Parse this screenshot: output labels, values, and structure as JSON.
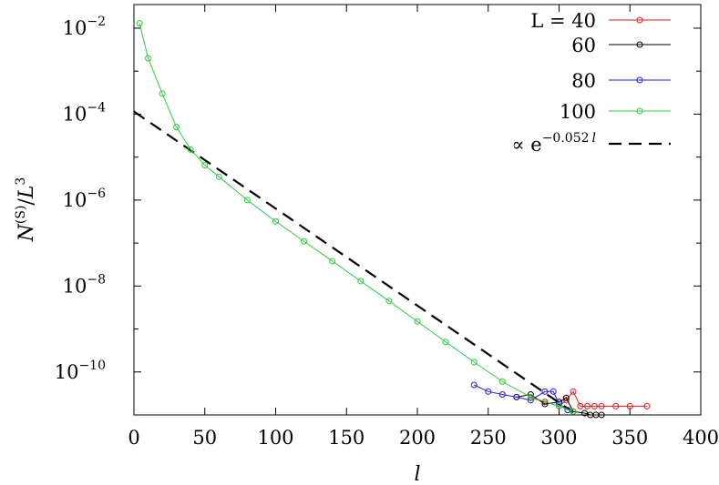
{
  "chart_data": {
    "type": "scatter",
    "xlabel": "l",
    "ylabel": "N^(S)/L^3",
    "xlim": [
      0,
      400
    ],
    "ylim_log10": [
      -11.0,
      -1.45
    ],
    "yscale": "log",
    "grid": false,
    "legend_position": "top-right",
    "x_ticks": [
      0,
      50,
      100,
      150,
      200,
      250,
      300,
      350,
      400
    ],
    "y_ticks": [
      {
        "exp": -2,
        "base": "10",
        "exponent": "−2"
      },
      {
        "exp": -4,
        "base": "10",
        "exponent": "−4"
      },
      {
        "exp": -6,
        "base": "10",
        "exponent": "−6"
      },
      {
        "exp": -8,
        "base": "10",
        "exponent": "−8"
      },
      {
        "exp": -10,
        "base": "10",
        "exponent": "−10"
      }
    ],
    "series": [
      {
        "name": "L = 40",
        "color": "#e41a1c",
        "marker": "open-circle",
        "x": [
          280,
          290,
          300,
          305,
          310,
          315,
          320,
          325,
          330,
          340,
          350,
          362
        ],
        "y": [
          2.5e-11,
          2e-11,
          1.6e-11,
          2.2e-11,
          3.5e-11,
          1.6e-11,
          1.6e-11,
          1.6e-11,
          1.6e-11,
          1.6e-11,
          1.6e-11,
          1.6e-11
        ]
      },
      {
        "name": "60",
        "color": "#000000",
        "marker": "open-circle",
        "x": [
          270,
          280,
          290,
          300,
          305,
          310,
          318,
          322,
          326,
          330
        ],
        "y": [
          2.6e-11,
          3e-11,
          1.8e-11,
          2e-11,
          2.5e-11,
          1.2e-11,
          1.1e-11,
          1e-11,
          1e-11,
          1e-11
        ]
      },
      {
        "name": "80",
        "color": "#1f1fd6",
        "marker": "open-circle",
        "x": [
          240,
          250,
          260,
          270,
          280,
          290,
          296,
          300,
          306
        ],
        "y": [
          5e-11,
          3.5e-11,
          3e-11,
          2.6e-11,
          2.2e-11,
          3.5e-11,
          3.5e-11,
          1.8e-11,
          1.3e-11
        ]
      },
      {
        "name": "100",
        "color": "#2ecc40",
        "marker": "open-circle",
        "x": [
          4,
          10,
          20,
          30,
          40,
          50,
          60,
          80,
          100,
          120,
          140,
          160,
          180,
          200,
          220,
          240,
          260,
          280,
          300,
          310
        ],
        "y": [
          0.013,
          0.002,
          0.0003,
          5e-05,
          1.5e-05,
          6.5e-06,
          3.5e-06,
          1e-06,
          3.2e-07,
          1.1e-07,
          3.8e-08,
          1.3e-08,
          4.5e-09,
          1.5e-09,
          5e-10,
          1.7e-10,
          6e-11,
          2.6e-11,
          1.6e-11,
          1.2e-11
        ]
      }
    ],
    "fit": {
      "name": "∝ e^(−0.052 l)",
      "symbol": "∝ e",
      "exponent": "−0.052",
      "exponent_var": "l",
      "style": "dashed",
      "color": "#000000",
      "amplitude": 0.000115,
      "rate": 0.052,
      "x_range": [
        0,
        310
      ]
    }
  }
}
